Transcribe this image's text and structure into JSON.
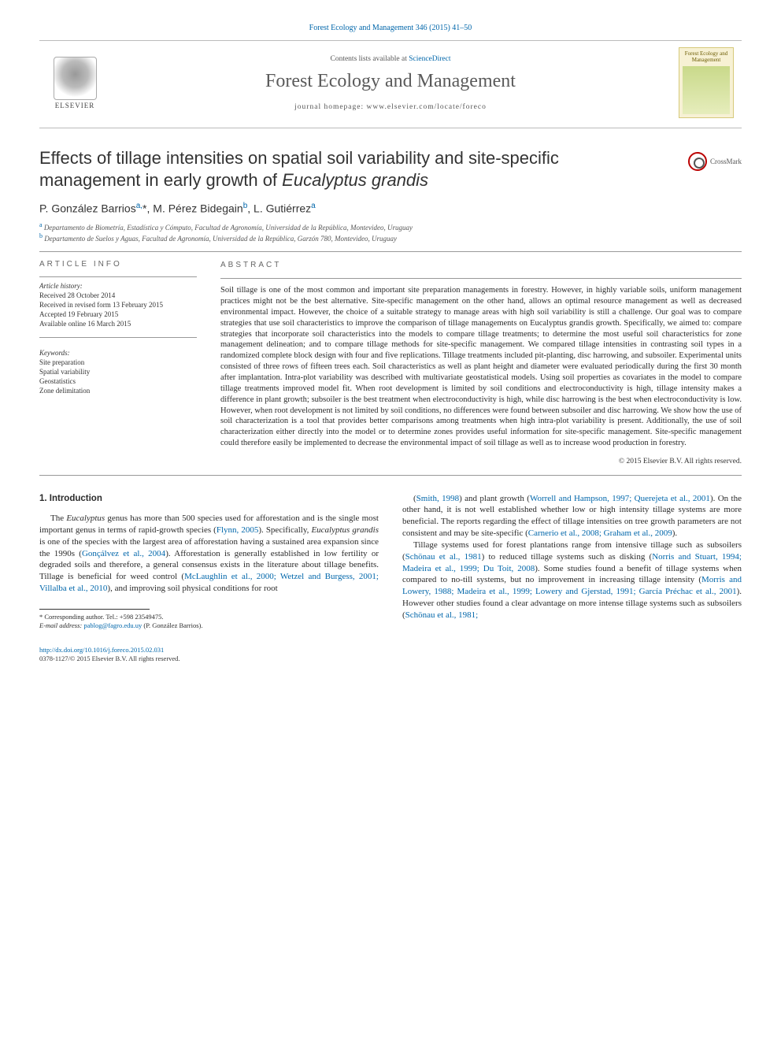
{
  "citation_top": "Forest Ecology and Management 346 (2015) 41–50",
  "header": {
    "contents_prefix": "Contents lists available at ",
    "contents_link": "ScienceDirect",
    "journal_title": "Forest Ecology and Management",
    "homepage_prefix": "journal homepage: ",
    "homepage_url": "www.elsevier.com/locate/foreco",
    "elsevier_label": "ELSEVIER",
    "cover_label": "Forest Ecology and Management",
    "crossmark": "CrossMark"
  },
  "title_html": "Effects of tillage intensities on spatial soil variability and site-specific management in early growth of Eucalyptus grandis",
  "title_italic_part": "Eucalyptus grandis",
  "authors_line": "P. González Barrios",
  "authors": [
    {
      "name": "P. González Barrios",
      "sup": "a,",
      "star": "*"
    },
    {
      "name": "M. Pérez Bidegain",
      "sup": "b"
    },
    {
      "name": "L. Gutiérrez",
      "sup": "a"
    }
  ],
  "affiliations": [
    {
      "sup": "a",
      "text": "Departamento de Biometría, Estadística y Cómputo, Facultad de Agronomía, Universidad de la República, Montevideo, Uruguay"
    },
    {
      "sup": "b",
      "text": "Departamento de Suelos y Aguas, Facultad de Agronomía, Universidad de la República, Garzón 780, Montevideo, Uruguay"
    }
  ],
  "info": {
    "heading": "ARTICLE INFO",
    "history_head": "Article history:",
    "history": [
      "Received 28 October 2014",
      "Received in revised form 13 February 2015",
      "Accepted 19 February 2015",
      "Available online 16 March 2015"
    ],
    "keywords_head": "Keywords:",
    "keywords": [
      "Site preparation",
      "Spatial variability",
      "Geostatistics",
      "Zone delimitation"
    ]
  },
  "abstract": {
    "heading": "ABSTRACT",
    "text": "Soil tillage is one of the most common and important site preparation managements in forestry. However, in highly variable soils, uniform management practices might not be the best alternative. Site-specific management on the other hand, allows an optimal resource management as well as decreased environmental impact. However, the choice of a suitable strategy to manage areas with high soil variability is still a challenge. Our goal was to compare strategies that use soil characteristics to improve the comparison of tillage managements on Eucalyptus grandis growth. Specifically, we aimed to: compare strategies that incorporate soil characteristics into the models to compare tillage treatments; to determine the most useful soil characteristics for zone management delineation; and to compare tillage methods for site-specific management. We compared tillage intensities in contrasting soil types in a randomized complete block design with four and five replications. Tillage treatments included pit-planting, disc harrowing, and subsoiler. Experimental units consisted of three rows of fifteen trees each. Soil characteristics as well as plant height and diameter were evaluated periodically during the first 30 month after implantation. Intra-plot variability was described with multivariate geostatistical models. Using soil properties as covariates in the model to compare tillage treatments improved model fit. When root development is limited by soil conditions and electroconductivity is high, tillage intensity makes a difference in plant growth; subsoiler is the best treatment when electroconductivity is high, while disc harrowing is the best when electroconductivity is low. However, when root development is not limited by soil conditions, no differences were found between subsoiler and disc harrowing. We show how the use of soil characterization is a tool that provides better comparisons among treatments when high intra-plot variability is present. Additionally, the use of soil characterization either directly into the model or to determine zones provides useful information for site-specific management. Site-specific management could therefore easily be implemented to decrease the environmental impact of soil tillage as well as to increase wood production in forestry.",
    "copyright": "© 2015 Elsevier B.V. All rights reserved."
  },
  "body": {
    "section_heading": "1. Introduction",
    "col1_p1": "The Eucalyptus genus has more than 500 species used for afforestation and is the single most important genus in terms of rapid-growth species (Flynn, 2005). Specifically, Eucalyptus grandis is one of the species with the largest area of afforestation having a sustained area expansion since the 1990s (Gonçálvez et al., 2004). Afforestation is generally established in low fertility or degraded soils and therefore, a general consensus exists in the literature about tillage benefits. Tillage is beneficial for weed control (McLaughlin et al., 2000; Wetzel and Burgess, 2001; Villalba et al., 2010), and improving soil physical conditions for root",
    "col2_p1": "(Smith, 1998) and plant growth (Worrell and Hampson, 1997; Querejeta et al., 2001). On the other hand, it is not well established whether low or high intensity tillage systems are more beneficial. The reports regarding the effect of tillage intensities on tree growth parameters are not consistent and may be site-specific (Carnerio et al., 2008; Graham et al., 2009).",
    "col2_p2": "Tillage systems used for forest plantations range from intensive tillage such as subsoilers (Schönau et al., 1981) to reduced tillage systems such as disking (Norris and Stuart, 1994; Madeira et al., 1999; Du Toit, 2008). Some studies found a benefit of tillage systems when compared to no-till systems, but no improvement in increasing tillage intensity (Morris and Lowery, 1988; Madeira et al., 1999; Lowery and Gjerstad, 1991; García Préchac et al., 2001). However other studies found a clear advantage on more intense tillage systems such as subsoilers (Schönau et al., 1981;"
  },
  "footnotes": {
    "corr_label": "* Corresponding author. Tel.: +598 23549475.",
    "email_label": "E-mail address:",
    "email": "pablog@fagro.edu.uy",
    "email_name": "(P. González Barrios)."
  },
  "footer": {
    "doi": "http://dx.doi.org/10.1016/j.foreco.2015.02.031",
    "issn_line": "0378-1127/© 2015 Elsevier B.V. All rights reserved."
  },
  "colors": {
    "link": "#0066aa",
    "text": "#2b2b2b",
    "rule": "#999999"
  }
}
